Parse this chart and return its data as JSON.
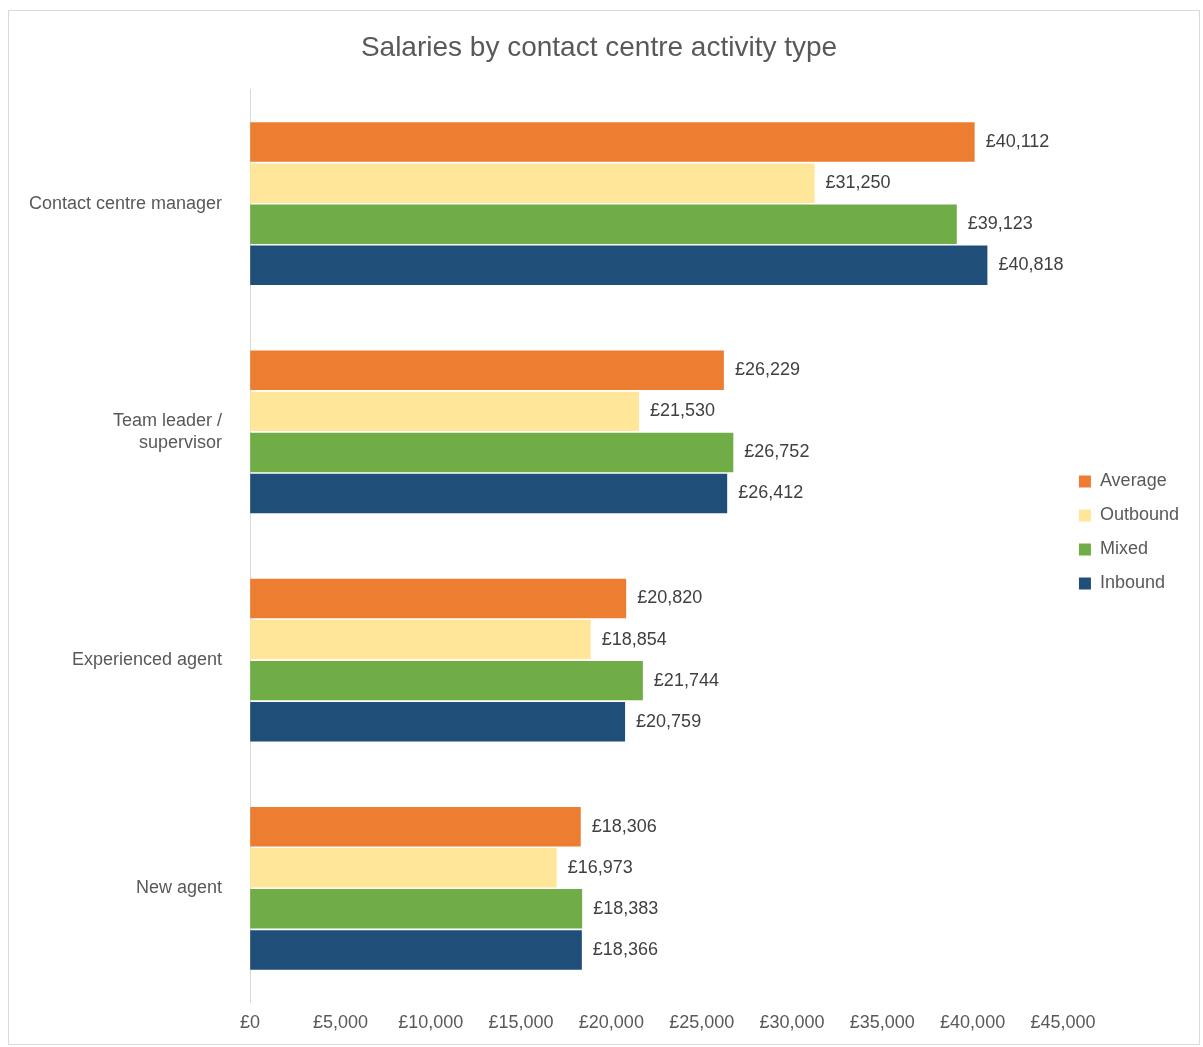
{
  "chart_data": {
    "type": "bar",
    "orientation": "horizontal",
    "title": "Salaries by contact centre activity type",
    "categories": [
      "Contact centre manager",
      "Team leader / supervisor",
      "Experienced agent",
      "New agent"
    ],
    "series": [
      {
        "name": "Average",
        "color": "#ed7d31",
        "values": [
          40112,
          26229,
          20820,
          18306
        ],
        "value_labels": [
          "£40,112",
          "£26,229",
          "£20,820",
          "£18,306"
        ]
      },
      {
        "name": "Outbound",
        "color": "#ffe699",
        "values": [
          31250,
          21530,
          18854,
          16973
        ],
        "value_labels": [
          "£31,250",
          "£21,530",
          "£18,854",
          "£16,973"
        ]
      },
      {
        "name": "Mixed",
        "color": "#70ad47",
        "values": [
          39123,
          26752,
          21744,
          18383
        ],
        "value_labels": [
          "£39,123",
          "£26,752",
          "£21,744",
          "£18,383"
        ]
      },
      {
        "name": "Inbound",
        "color": "#1f4e79",
        "values": [
          40818,
          26412,
          20759,
          18366
        ],
        "value_labels": [
          "£40,818",
          "£26,412",
          "£20,759",
          "£18,366"
        ]
      }
    ],
    "xlim": [
      0,
      45000
    ],
    "xticks": [
      {
        "value": 0,
        "label": "£0"
      },
      {
        "value": 5000,
        "label": "£5,000"
      },
      {
        "value": 10000,
        "label": "£10,000"
      },
      {
        "value": 15000,
        "label": "£15,000"
      },
      {
        "value": 20000,
        "label": "£20,000"
      },
      {
        "value": 25000,
        "label": "£25,000"
      },
      {
        "value": 30000,
        "label": "£30,000"
      },
      {
        "value": 35000,
        "label": "£35,000"
      },
      {
        "value": 40000,
        "label": "£40,000"
      },
      {
        "value": 45000,
        "label": "£45,000"
      }
    ],
    "grid": false,
    "legend": "right"
  }
}
